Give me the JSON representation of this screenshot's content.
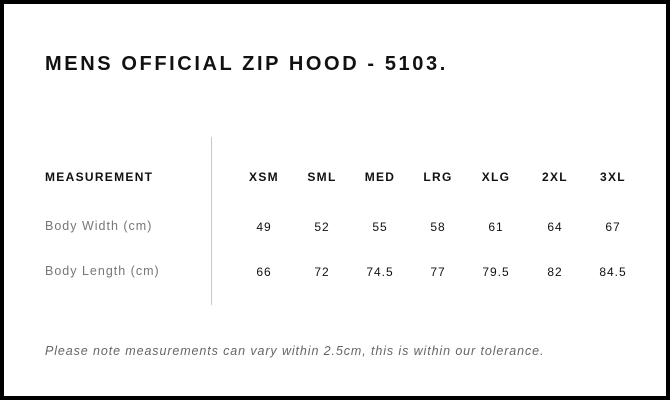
{
  "title": "MENS OFFICIAL ZIP HOOD - 5103.",
  "table": {
    "header_label": "MEASUREMENT",
    "sizes": [
      "XSM",
      "SML",
      "MED",
      "LRG",
      "XLG",
      "2XL",
      "3XL"
    ],
    "rows": [
      {
        "label": "Body Width (cm)",
        "values": [
          "49",
          "52",
          "55",
          "58",
          "61",
          "64",
          "67"
        ]
      },
      {
        "label": "Body Length (cm)",
        "values": [
          "66",
          "72",
          "74.5",
          "77",
          "79.5",
          "82",
          "84.5"
        ]
      }
    ]
  },
  "note": "Please note measurements can vary within 2.5cm, this is within our tolerance."
}
